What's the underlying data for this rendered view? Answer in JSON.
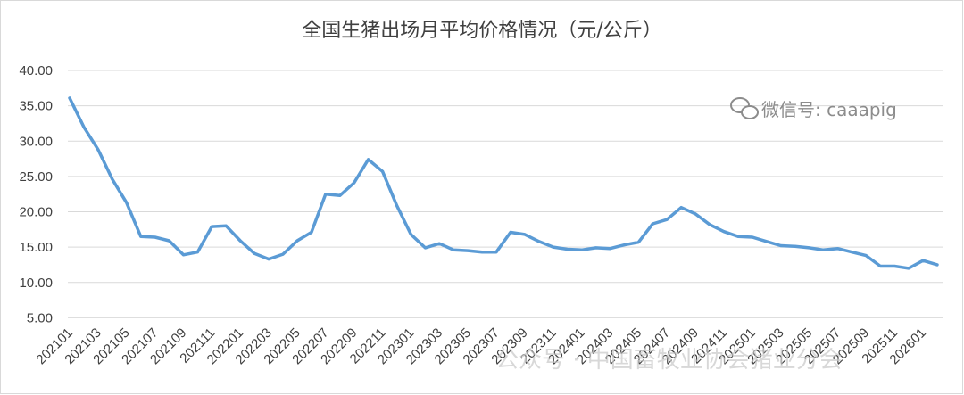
{
  "chart_data": {
    "type": "line",
    "title": "全国生猪出场月平均价格情况（元/公斤）",
    "xlabel": "",
    "ylabel": "",
    "ylim": [
      0,
      40
    ],
    "yticks": [
      "5.00",
      "10.00",
      "15.00",
      "20.00",
      "25.00",
      "30.00",
      "35.00",
      "40.00"
    ],
    "grid": true,
    "legend": "none",
    "x": [
      "202101",
      "202102",
      "202103",
      "202104",
      "202105",
      "202106",
      "202107",
      "202108",
      "202109",
      "202110",
      "202111",
      "202112",
      "202201",
      "202202",
      "202203",
      "202204",
      "202205",
      "202206",
      "202207",
      "202208",
      "202209",
      "202210",
      "202211",
      "202212",
      "202301",
      "202302",
      "202303",
      "202304",
      "202305",
      "202306",
      "202307",
      "202308",
      "202309",
      "202310",
      "202311",
      "202312",
      "202401",
      "202402",
      "202403",
      "202404",
      "202405",
      "202406",
      "202407",
      "202408",
      "202409",
      "202410",
      "202411",
      "202412",
      "202501",
      "202502",
      "202503",
      "202504",
      "202505",
      "202506",
      "202507",
      "202508",
      "202509",
      "202510",
      "202511",
      "202512",
      "202601",
      "202602"
    ],
    "xticklabels": [
      "202101",
      "202103",
      "202105",
      "202107",
      "202109",
      "202111",
      "202201",
      "202203",
      "202205",
      "202207",
      "202209",
      "202211",
      "202301",
      "202303",
      "202305",
      "202307",
      "202309",
      "202311",
      "202401",
      "202403",
      "202405",
      "202407",
      "202409",
      "202411",
      "202501",
      "202503",
      "202505",
      "202507",
      "202509",
      "202511",
      "202601"
    ],
    "series": [
      {
        "color": "#5b9bd5",
        "values": [
          36.1,
          32.0,
          28.8,
          24.6,
          21.3,
          16.5,
          16.4,
          15.9,
          13.9,
          14.3,
          17.9,
          18.0,
          15.9,
          14.1,
          13.3,
          14.0,
          15.9,
          17.1,
          22.5,
          22.3,
          24.1,
          27.4,
          25.7,
          20.9,
          16.8,
          14.9,
          15.5,
          14.6,
          14.5,
          14.3,
          14.3,
          17.1,
          16.8,
          15.8,
          15.0,
          14.7,
          14.6,
          14.9,
          14.8,
          15.3,
          15.7,
          18.3,
          18.9,
          20.6,
          19.7,
          18.2,
          17.2,
          16.5,
          16.4,
          15.8,
          15.2,
          15.1,
          14.9,
          14.6,
          14.8,
          14.3,
          13.8,
          12.3,
          12.3,
          12.0,
          13.1,
          12.5
        ]
      }
    ]
  },
  "watermarks": {
    "wechat_id": "微信号: caaapig",
    "official_account": "公众号 · 中国畜牧业协会猪业分会"
  }
}
